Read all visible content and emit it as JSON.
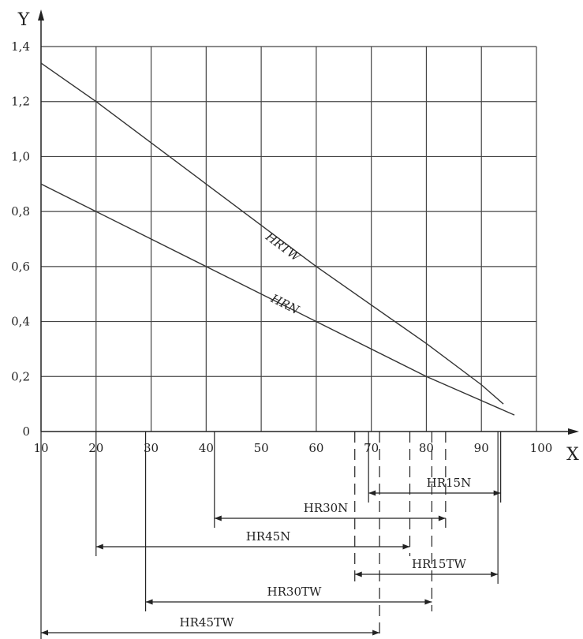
{
  "chart_data": {
    "type": "line",
    "xlabel": "X",
    "ylabel": "Y",
    "xlim": [
      10,
      100
    ],
    "ylim": [
      0,
      1.4
    ],
    "grid": true,
    "x_ticks": [
      "10",
      "20",
      "30",
      "40",
      "50",
      "60",
      "70",
      "80",
      "90",
      "100"
    ],
    "y_ticks": [
      "0",
      "0,2",
      "0,4",
      "0,6",
      "0,8",
      "1,0",
      "1,2",
      "1,4"
    ],
    "series": [
      {
        "name": "HRTW",
        "x": [
          10,
          20,
          40,
          60,
          80,
          90,
          94
        ],
        "y": [
          1.34,
          1.2,
          0.9,
          0.6,
          0.32,
          0.17,
          0.1
        ]
      },
      {
        "name": "HRN",
        "x": [
          10,
          20,
          40,
          60,
          80,
          96
        ],
        "y": [
          0.9,
          0.8,
          0.6,
          0.4,
          0.2,
          0.06
        ]
      }
    ],
    "ranges": [
      {
        "name": "HR15N",
        "start": 69.5,
        "end": 93.5
      },
      {
        "name": "HR30N",
        "start": 41.5,
        "end": 83.5
      },
      {
        "name": "HR45N",
        "start": 20,
        "end": 77
      },
      {
        "name": "HR15TW",
        "start": 67,
        "end": 93
      },
      {
        "name": "HR30TW",
        "start": 29,
        "end": 81
      },
      {
        "name": "HR45TW",
        "start": 10,
        "end": 71.5
      }
    ]
  }
}
